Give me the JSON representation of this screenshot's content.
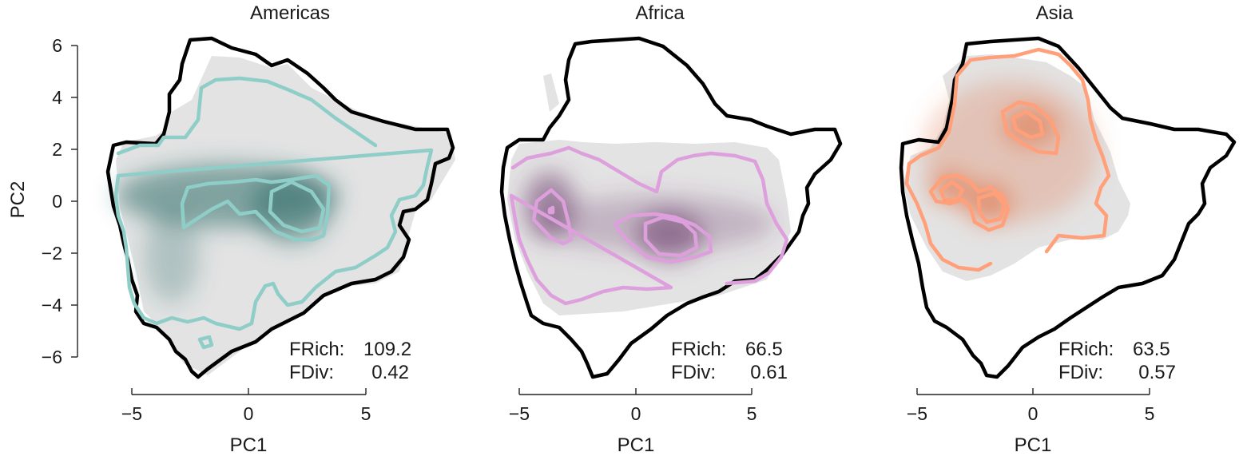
{
  "chart_data": [
    {
      "type": "contour",
      "title": "Americas",
      "xlabel": "PC1",
      "ylabel": "PC2",
      "xlim": [
        -5,
        5
      ],
      "ylim": [
        -6,
        6
      ],
      "xticks": [
        "−5",
        "0",
        "5"
      ],
      "yticks": [
        "6",
        "4",
        "2",
        "0",
        "−2",
        "−4",
        "−6"
      ],
      "color": "#8fcdc8",
      "density_color": "#2f6e6a",
      "annotations": {
        "frich_label": "FRich:",
        "frich_value": "109.2",
        "fdiv_label": "FDiv:",
        "fdiv_value": "0.42"
      }
    },
    {
      "type": "contour",
      "title": "Africa",
      "xlabel": "PC1",
      "xlim": [
        -5,
        5
      ],
      "ylim": [
        -6,
        6
      ],
      "xticks": [
        "−5",
        "0",
        "5"
      ],
      "color": "#dda0dd",
      "density_color": "#6b3a6b",
      "annotations": {
        "frich_label": "FRich:",
        "frich_value": "66.5",
        "fdiv_label": "FDiv:",
        "fdiv_value": "0.61"
      }
    },
    {
      "type": "contour",
      "title": "Asia",
      "xlabel": "PC1",
      "xlim": [
        -5,
        5
      ],
      "ylim": [
        -6,
        6
      ],
      "xticks": [
        "−5",
        "0",
        "5"
      ],
      "color": "#ffa07a",
      "density_color": "#e0703f",
      "annotations": {
        "frich_label": "FRich:",
        "frich_value": "63.5",
        "fdiv_label": "FDiv:",
        "fdiv_value": "0.57"
      }
    }
  ]
}
